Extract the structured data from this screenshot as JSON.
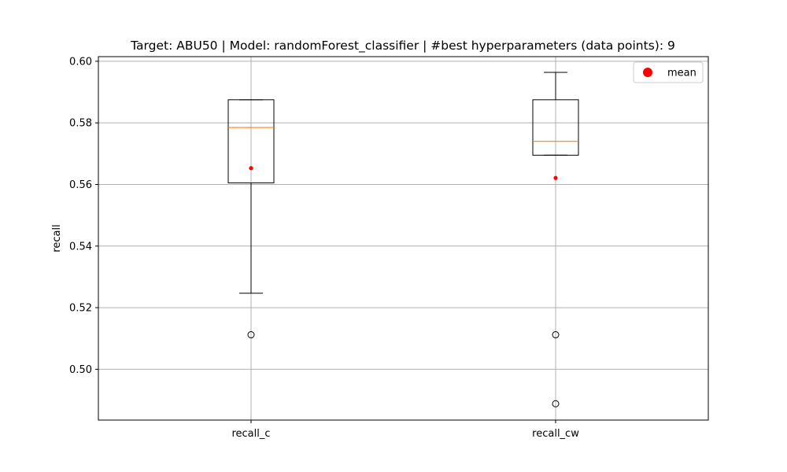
{
  "chart_data": {
    "type": "box",
    "title": "Target: ABU50 | Model: randomForest_classifier | #best hyperparameters (data points): 9",
    "xlabel": "",
    "ylabel": "recall",
    "ylim": [
      0.4835,
      0.6015
    ],
    "yticks": [
      0.5,
      0.52,
      0.54,
      0.56,
      0.58,
      0.6
    ],
    "ytick_labels": [
      "0.50",
      "0.52",
      "0.54",
      "0.56",
      "0.58",
      "0.60"
    ],
    "grid": true,
    "legend": {
      "position": "top-right",
      "entries": [
        {
          "label": "mean",
          "color": "#ff0000"
        }
      ]
    },
    "categories": [
      "recall_c",
      "recall_cw"
    ],
    "boxes": [
      {
        "name": "recall_c",
        "whisker_low": 0.5247,
        "q1": 0.5605,
        "median": 0.5785,
        "q3": 0.5875,
        "whisker_high": 0.5875,
        "mean": 0.5653,
        "outliers": [
          0.5112
        ]
      },
      {
        "name": "recall_cw",
        "whisker_low": 0.5695,
        "q1": 0.5695,
        "median": 0.574,
        "q3": 0.5875,
        "whisker_high": 0.5964,
        "mean": 0.5621,
        "outliers": [
          0.5112,
          0.4888
        ]
      }
    ],
    "colors": {
      "box": "#000000",
      "median": "#ff7f0e",
      "mean": "#ff0000",
      "grid": "#b0b0b0"
    }
  }
}
